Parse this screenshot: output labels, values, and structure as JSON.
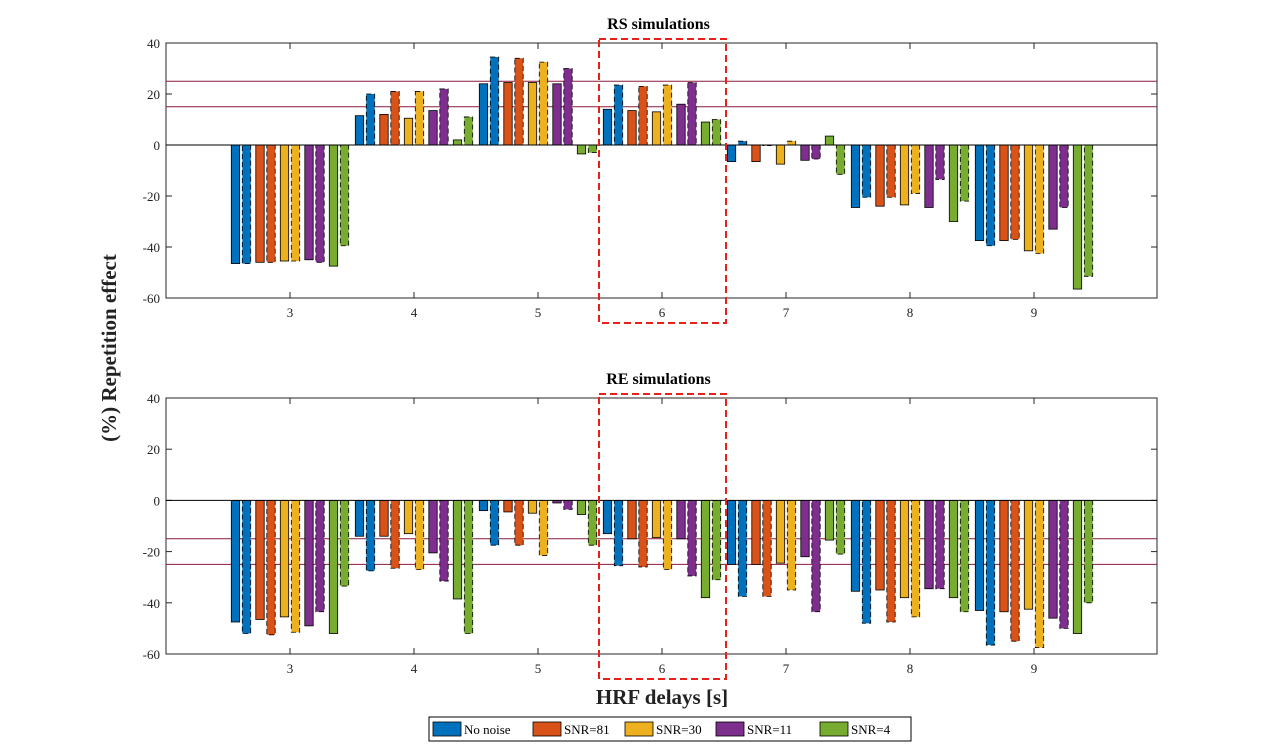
{
  "figure": {
    "ylabel": "(%) Repetition effect",
    "xlabel": "HRF delays [s]"
  },
  "chart_data": [
    {
      "type": "bar",
      "title": "RS simulations",
      "categories": [
        "3",
        "4",
        "5",
        "6",
        "7",
        "8",
        "9"
      ],
      "ylim": [
        -60,
        40
      ],
      "yticks": [
        40,
        20,
        0,
        -20,
        -40,
        -60
      ],
      "reference_lines": [
        25,
        15
      ],
      "highlight_category": "6",
      "series": [
        {
          "name": "No noise",
          "color": "#0072BD",
          "solid": [
            -46.5,
            11.5,
            24,
            14,
            -6.5,
            -24.5,
            -37.5
          ],
          "dashed": [
            -46.5,
            20,
            34.5,
            23.5,
            1.5,
            -20.5,
            -39.5
          ]
        },
        {
          "name": "SNR=81",
          "color": "#D95319",
          "solid": [
            -46,
            12,
            24.5,
            13.5,
            -6.5,
            -24,
            -37.5
          ],
          "dashed": [
            -46,
            21,
            34,
            23,
            0,
            -20.5,
            -37
          ]
        },
        {
          "name": "SNR=30",
          "color": "#EDB120",
          "solid": [
            -45.5,
            10.5,
            24.5,
            13,
            -7.5,
            -23.5,
            -41.5
          ],
          "dashed": [
            -45.5,
            21,
            32.5,
            23.5,
            1.5,
            -19,
            -42.5
          ]
        },
        {
          "name": "SNR=11",
          "color": "#7E2F8E",
          "solid": [
            -45,
            13.5,
            24,
            16,
            -6,
            -24.5,
            -33
          ],
          "dashed": [
            -46,
            22,
            30,
            24.5,
            -5.5,
            -13.5,
            -24.5
          ]
        },
        {
          "name": "SNR=4",
          "color": "#77AC30",
          "solid": [
            -47.5,
            2,
            -3.5,
            9,
            3.5,
            -30,
            -56.5
          ],
          "dashed": [
            -39.5,
            11,
            -3,
            10,
            -11.5,
            -22,
            -51.5
          ]
        }
      ]
    },
    {
      "type": "bar",
      "title": "RE simulations",
      "categories": [
        "3",
        "4",
        "5",
        "6",
        "7",
        "8",
        "9"
      ],
      "ylim": [
        -60,
        40
      ],
      "yticks": [
        40,
        20,
        0,
        -20,
        -40,
        -60
      ],
      "reference_lines": [
        -15,
        -25
      ],
      "highlight_category": "6",
      "series": [
        {
          "name": "No noise",
          "color": "#0072BD",
          "solid": [
            -47.5,
            -14,
            -4,
            -13,
            -25,
            -35.5,
            -43
          ],
          "dashed": [
            -52,
            -27.5,
            -17.5,
            -25.5,
            -37.5,
            -48,
            -56.5
          ]
        },
        {
          "name": "SNR=81",
          "color": "#D95319",
          "solid": [
            -46.5,
            -14,
            -4.5,
            -15,
            -25,
            -35,
            -43.5
          ],
          "dashed": [
            -52.5,
            -26.5,
            -17.5,
            -26,
            -37.5,
            -47.5,
            -55
          ]
        },
        {
          "name": "SNR=30",
          "color": "#EDB120",
          "solid": [
            -45.5,
            -13,
            -5,
            -14.5,
            -24.5,
            -38,
            -42.5
          ],
          "dashed": [
            -51.5,
            -27,
            -21.5,
            -27,
            -35,
            -45.5,
            -57.5
          ]
        },
        {
          "name": "SNR=11",
          "color": "#7E2F8E",
          "solid": [
            -49,
            -20.5,
            -1,
            -15,
            -22,
            -34.5,
            -46
          ],
          "dashed": [
            -43.5,
            -31.5,
            -3.5,
            -29.5,
            -43.5,
            -34.5,
            -50
          ]
        },
        {
          "name": "SNR=4",
          "color": "#77AC30",
          "solid": [
            -52,
            -38.5,
            -5.5,
            -38,
            -15.5,
            -38,
            -52
          ],
          "dashed": [
            -33.5,
            -52,
            -17.5,
            -31,
            -21,
            -43.5,
            -40
          ]
        }
      ]
    }
  ]
}
